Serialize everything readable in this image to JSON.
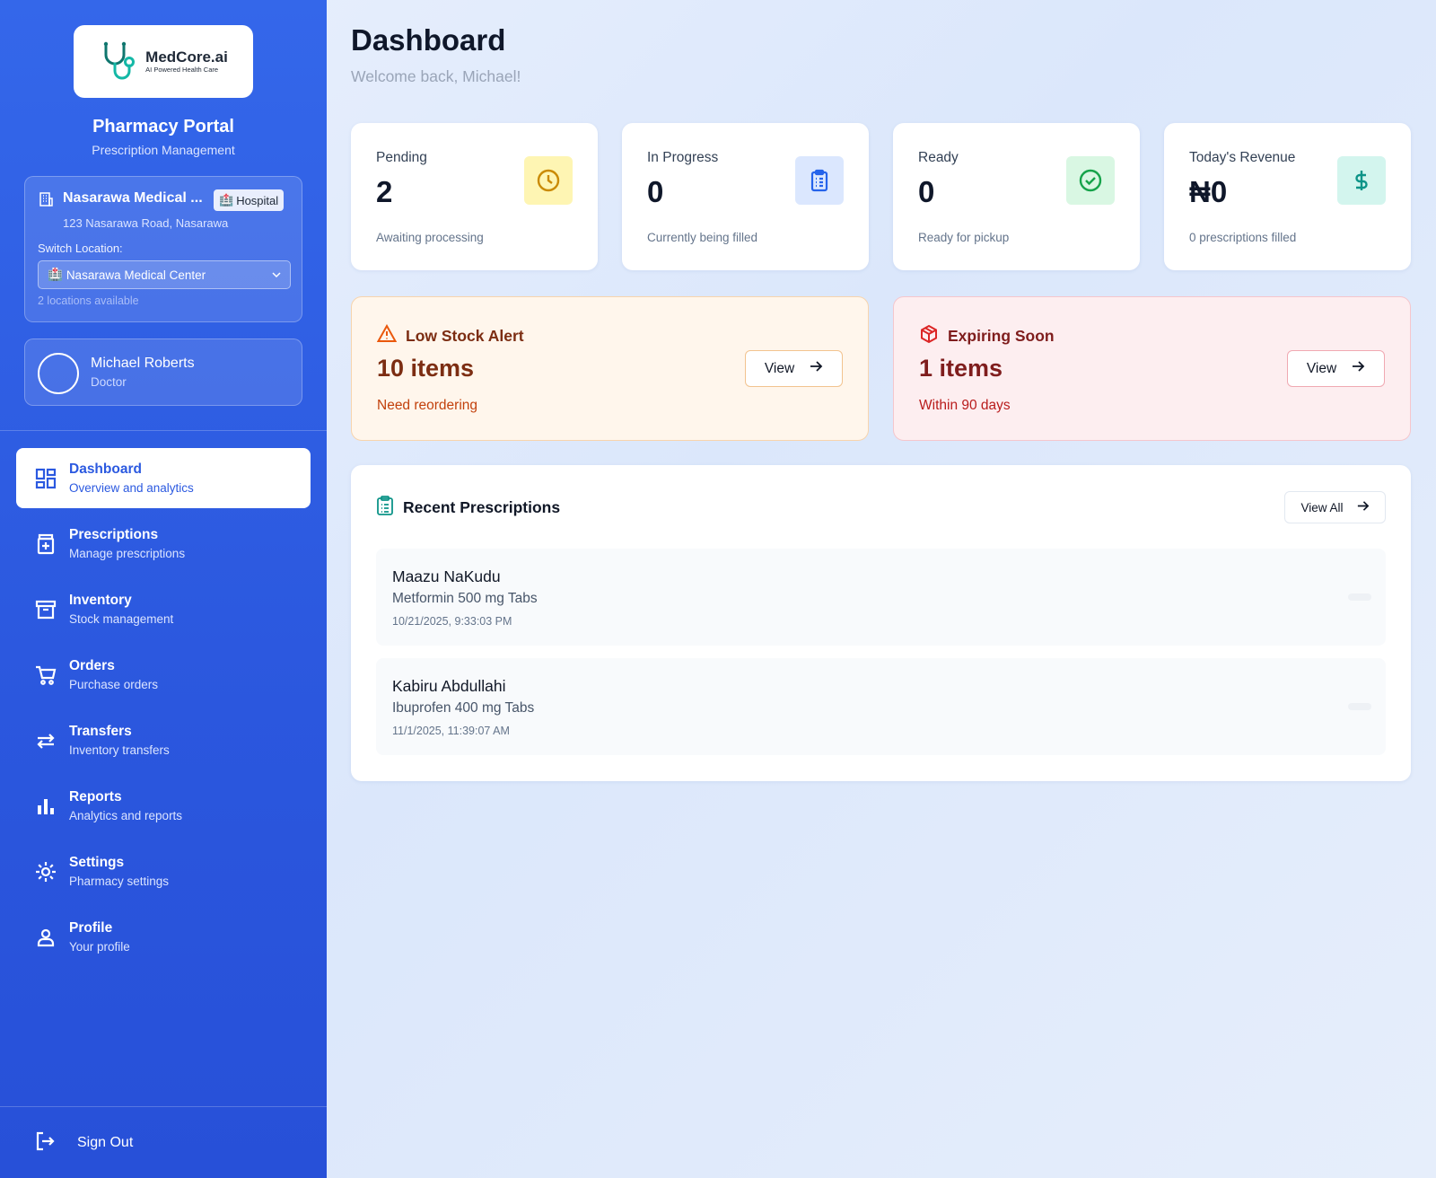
{
  "brand": {
    "name": "MedCore.ai",
    "tagline": "AI Powered Health Care"
  },
  "sidebar": {
    "portal_title": "Pharmacy Portal",
    "portal_subtitle": "Prescription Management",
    "location": {
      "name": "Nasarawa Medical ...",
      "badge": "Hospital",
      "address": "123 Nasarawa Road, Nasarawa",
      "switch_label": "Switch Location:",
      "selected": "Nasarawa Medical Center",
      "count_text": "2 locations available"
    },
    "user": {
      "name": "Michael Roberts",
      "role": "Doctor"
    },
    "nav": [
      {
        "label": "Dashboard",
        "desc": "Overview and analytics",
        "icon": "dashboard-icon",
        "active": true
      },
      {
        "label": "Prescriptions",
        "desc": "Manage prescriptions",
        "icon": "prescription-icon"
      },
      {
        "label": "Inventory",
        "desc": "Stock management",
        "icon": "archive-icon"
      },
      {
        "label": "Orders",
        "desc": "Purchase orders",
        "icon": "cart-icon"
      },
      {
        "label": "Transfers",
        "desc": "Inventory transfers",
        "icon": "transfer-icon"
      },
      {
        "label": "Reports",
        "desc": "Analytics and reports",
        "icon": "bar-chart-icon"
      },
      {
        "label": "Settings",
        "desc": "Pharmacy settings",
        "icon": "gear-icon"
      },
      {
        "label": "Profile",
        "desc": "Your profile",
        "icon": "user-icon"
      }
    ],
    "signout_label": "Sign Out"
  },
  "header": {
    "title": "Dashboard",
    "subtitle": "Welcome back, Michael!"
  },
  "stats": [
    {
      "label": "Pending",
      "value": "2",
      "note": "Awaiting processing",
      "icon": "clock-icon",
      "icon_color": "#ca8a04",
      "icon_bg": "#fef5b3"
    },
    {
      "label": "In Progress",
      "value": "0",
      "note": "Currently being filled",
      "icon": "clipboard-icon",
      "icon_color": "#2563eb",
      "icon_bg": "#dbe7fe"
    },
    {
      "label": "Ready",
      "value": "0",
      "note": "Ready for pickup",
      "icon": "check-circle-icon",
      "icon_color": "#16a34a",
      "icon_bg": "#d9f7e3"
    },
    {
      "label": "Today's Revenue",
      "value": "₦0",
      "note": "0 prescriptions filled",
      "icon": "dollar-icon",
      "icon_color": "#0d9488",
      "icon_bg": "#d3f5ee"
    }
  ],
  "alerts": {
    "low_stock": {
      "title": "Low Stock Alert",
      "value": "10 items",
      "note": "Need reordering",
      "button": "View"
    },
    "expiring": {
      "title": "Expiring Soon",
      "value": "1 items",
      "note": "Within 90 days",
      "button": "View"
    }
  },
  "recent": {
    "title": "Recent Prescriptions",
    "view_all": "View All",
    "items": [
      {
        "patient": "Maazu NaKudu",
        "drug": "Metformin 500 mg Tabs",
        "time": "10/21/2025, 9:33:03 PM"
      },
      {
        "patient": "Kabiru Abdullahi",
        "drug": "Ibuprofen 400 mg Tabs",
        "time": "11/1/2025, 11:39:07 AM"
      }
    ]
  },
  "colors": {
    "sidebar": "#2f5fe6",
    "accent": "#2b59e0",
    "teal": "#0d9488"
  }
}
